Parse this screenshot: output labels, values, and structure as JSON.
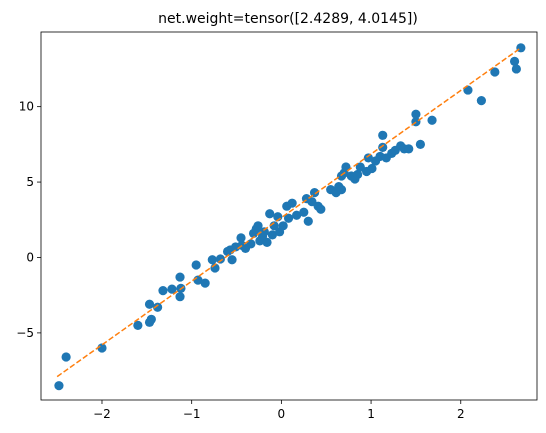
{
  "chart_data": {
    "type": "scatter",
    "title": "net.weight=tensor([2.4289, 4.0145])",
    "xlabel": "",
    "ylabel": "",
    "xlim": [
      -2.68,
      2.85
    ],
    "ylim": [
      -9.45,
      14.95
    ],
    "x_ticks": [
      -2,
      -1,
      0,
      1,
      2
    ],
    "x_tick_labels": [
      "−2",
      "−1",
      "0",
      "1",
      "2"
    ],
    "y_ticks": [
      -5,
      0,
      5,
      10
    ],
    "y_tick_labels": [
      "−5",
      "0",
      "5",
      "10"
    ],
    "grid": false,
    "legend": "none",
    "colors": {
      "points": "#1f77b4",
      "fit_line": "#ff7f0e"
    },
    "series": [
      {
        "kind": "points",
        "points": [
          [
            -2.48,
            -8.5
          ],
          [
            -2.4,
            -6.6
          ],
          [
            -2.0,
            -6.0
          ],
          [
            -1.6,
            -4.5
          ],
          [
            -1.47,
            -4.3
          ],
          [
            -1.45,
            -4.1
          ],
          [
            -1.47,
            -3.1
          ],
          [
            -1.38,
            -3.3
          ],
          [
            -1.32,
            -2.2
          ],
          [
            -1.22,
            -2.1
          ],
          [
            -1.13,
            -2.6
          ],
          [
            -1.13,
            -1.3
          ],
          [
            -1.12,
            -2.05
          ],
          [
            -0.95,
            -0.5
          ],
          [
            -0.93,
            -1.5
          ],
          [
            -0.85,
            -1.7
          ],
          [
            -0.77,
            -0.15
          ],
          [
            -0.74,
            -0.7
          ],
          [
            -0.68,
            -0.1
          ],
          [
            -0.6,
            0.4
          ],
          [
            -0.57,
            0.5
          ],
          [
            -0.55,
            -0.15
          ],
          [
            -0.51,
            0.7
          ],
          [
            -0.45,
            1.3
          ],
          [
            -0.44,
            0.8
          ],
          [
            -0.4,
            0.6
          ],
          [
            -0.34,
            0.9
          ],
          [
            -0.31,
            1.6
          ],
          [
            -0.28,
            1.9
          ],
          [
            -0.26,
            2.1
          ],
          [
            -0.24,
            1.1
          ],
          [
            -0.21,
            1.4
          ],
          [
            -0.19,
            1.7
          ],
          [
            -0.16,
            1.0
          ],
          [
            -0.13,
            2.9
          ],
          [
            -0.1,
            1.5
          ],
          [
            -0.08,
            2.1
          ],
          [
            -0.04,
            2.7
          ],
          [
            -0.02,
            1.7
          ],
          [
            0.02,
            2.1
          ],
          [
            0.06,
            3.4
          ],
          [
            0.08,
            2.6
          ],
          [
            0.12,
            3.6
          ],
          [
            0.17,
            2.8
          ],
          [
            0.25,
            3.0
          ],
          [
            0.28,
            3.9
          ],
          [
            0.3,
            2.4
          ],
          [
            0.34,
            3.7
          ],
          [
            0.37,
            4.3
          ],
          [
            0.41,
            3.4
          ],
          [
            0.44,
            3.2
          ],
          [
            0.55,
            4.5
          ],
          [
            0.61,
            4.3
          ],
          [
            0.64,
            4.7
          ],
          [
            0.67,
            4.5
          ],
          [
            0.67,
            5.4
          ],
          [
            0.7,
            5.6
          ],
          [
            0.72,
            6.0
          ],
          [
            0.78,
            5.4
          ],
          [
            0.82,
            5.2
          ],
          [
            0.85,
            5.5
          ],
          [
            0.88,
            6.0
          ],
          [
            0.95,
            5.7
          ],
          [
            0.97,
            6.6
          ],
          [
            1.01,
            5.9
          ],
          [
            1.05,
            6.4
          ],
          [
            1.1,
            6.7
          ],
          [
            1.13,
            7.3
          ],
          [
            1.13,
            8.1
          ],
          [
            1.17,
            6.6
          ],
          [
            1.23,
            6.9
          ],
          [
            1.27,
            7.1
          ],
          [
            1.33,
            7.4
          ],
          [
            1.37,
            7.2
          ],
          [
            1.42,
            7.2
          ],
          [
            1.5,
            9.0
          ],
          [
            1.5,
            9.5
          ],
          [
            1.55,
            7.5
          ],
          [
            1.68,
            9.1
          ],
          [
            2.08,
            11.1
          ],
          [
            2.23,
            10.4
          ],
          [
            2.38,
            12.3
          ],
          [
            2.6,
            13.0
          ],
          [
            2.62,
            12.5
          ],
          [
            2.67,
            13.9
          ]
        ]
      },
      {
        "kind": "fit_line",
        "points": [
          [
            -2.5,
            -7.9
          ],
          [
            2.67,
            13.9
          ]
        ]
      }
    ]
  }
}
